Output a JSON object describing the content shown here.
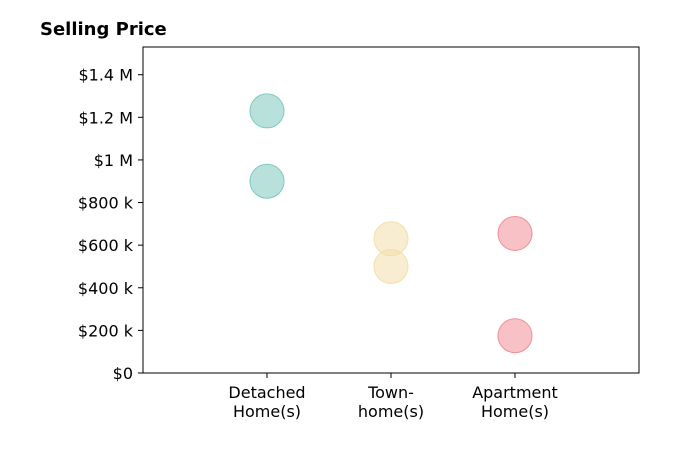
{
  "chart_data": {
    "type": "scatter",
    "title": "Selling Price",
    "xlabel": "",
    "ylabel": "",
    "categories": [
      [
        "Detached",
        "Home(s)"
      ],
      [
        "Town-",
        "home(s)"
      ],
      [
        "Apartment",
        "Home(s)"
      ]
    ],
    "ylim": [
      0,
      1530000
    ],
    "yticks": [
      0,
      200000,
      400000,
      600000,
      800000,
      1000000,
      1200000,
      1400000
    ],
    "ytick_labels": [
      "$0",
      "$200 k",
      "$400 k",
      "$600 k",
      "$800 k",
      "$1 M",
      "$1.2 M",
      "$1.4 M"
    ],
    "grid": false,
    "series": [
      {
        "category_index": 0,
        "color": "#7ec8be",
        "values": [
          1230000,
          900000
        ]
      },
      {
        "category_index": 1,
        "color": "#f3dfa9",
        "values": [
          630000,
          500000
        ]
      },
      {
        "category_index": 2,
        "color": "#f08e96",
        "values": [
          655000,
          175000
        ]
      }
    ]
  }
}
